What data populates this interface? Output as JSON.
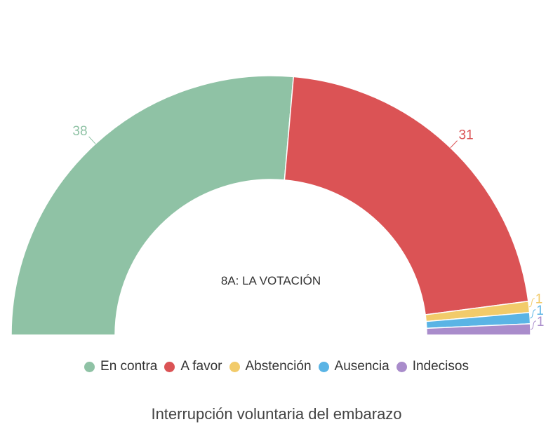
{
  "chart_data": {
    "type": "pie",
    "variant": "semi-donut",
    "center_label": "8A: LA VOTACIÓN",
    "caption": "Interrupción voluntaria del embarazo",
    "legend_position": "bottom",
    "slices": [
      {
        "name": "En contra",
        "value": 38,
        "label": "38",
        "color": "#8fc2a5"
      },
      {
        "name": "A favor",
        "value": 31,
        "label": "31",
        "color": "#db5355"
      },
      {
        "name": "Abstención",
        "value": 1,
        "label": "1",
        "color": "#f2cb6a"
      },
      {
        "name": "Ausencia",
        "value": 1,
        "label": "1",
        "color": "#5ab4e5"
      },
      {
        "name": "Indecisos",
        "value": 1,
        "label": "1",
        "color": "#a98ccb"
      }
    ]
  }
}
